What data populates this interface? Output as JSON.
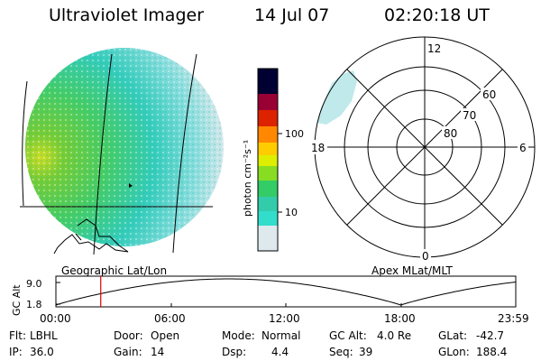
{
  "header": {
    "instrument": "Ultraviolet Imager",
    "date": "14 Jul 07",
    "time": "02:20:18 UT"
  },
  "geo_panel": {
    "caption": "Geographic Lat/Lon"
  },
  "polar_panel": {
    "caption": "Apex MLat/MLT",
    "mlt_labels": {
      "top": "12",
      "left": "18",
      "right": "6",
      "bottom": "0"
    },
    "lat_labels": [
      "60",
      "70",
      "80"
    ]
  },
  "colorbar": {
    "unit_label": "photon cm⁻²s⁻¹",
    "ticks": [
      "100",
      "10"
    ],
    "colors": [
      "#dde9ec",
      "#33ddcc",
      "#33cc66",
      "#88dd22",
      "#ddee00",
      "#ffcc00",
      "#ff8800",
      "#dd2200",
      "#990033",
      "#550055",
      "#000033"
    ]
  },
  "altitude_strip": {
    "ylabel": "GC Alt",
    "y_ticks": [
      "9.0",
      "1.8"
    ],
    "x_ticks": [
      "00:00",
      "06:00",
      "12:00",
      "18:00",
      "23:59"
    ],
    "current_time_hours": 2.34,
    "marker_color": "#dd0000"
  },
  "status": {
    "row1": [
      {
        "label": "Flt:",
        "value": "LBHL"
      },
      {
        "label": "Door:",
        "value": "Open"
      },
      {
        "label": "Mode:",
        "value": "Normal"
      },
      {
        "label": "GC Alt:",
        "value": "4.0 Re"
      },
      {
        "label": "GLat:",
        "value": "-42.7"
      }
    ],
    "row2": [
      {
        "label": "IP:",
        "value": "36.0"
      },
      {
        "label": "Gain:",
        "value": "14"
      },
      {
        "label": "Dsp:",
        "value": "4.4"
      },
      {
        "label": "Seq:",
        "value": "39"
      },
      {
        "label": "GLon:",
        "value": "188.4"
      }
    ]
  }
}
